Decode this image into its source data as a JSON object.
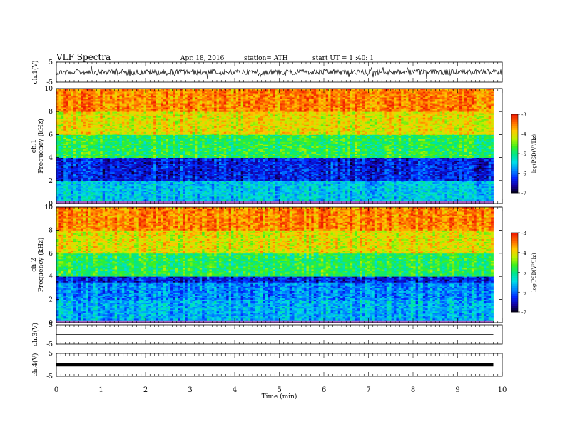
{
  "header": {
    "title": "VLF  Spectra",
    "date": "Apr. 18, 2016",
    "station": "station= ATH",
    "start": "start  UT  =   1  :40: 1"
  },
  "chart_data": [
    {
      "type": "line",
      "name": "ch1-waveform",
      "ylabel": "ch.1(V)",
      "ylim": [
        -5,
        5
      ],
      "yticks": [
        "5",
        "-5"
      ],
      "approx_level": 0,
      "xlim": [
        0,
        10
      ]
    },
    {
      "type": "heatmap",
      "name": "ch1-spectrogram",
      "ylabel": [
        "ch.1",
        "Frequency  (kHz)"
      ],
      "ylim": [
        0,
        10
      ],
      "yticks": [
        "0",
        "2",
        "4",
        "6",
        "8",
        "10"
      ],
      "xlim": [
        0,
        9.8
      ],
      "color_scale": {
        "label": "log(PSD(V²/Hz)",
        "ticks": [
          "-3",
          "-4",
          "-5",
          "-6",
          "-7"
        ],
        "range": [
          -7,
          -3
        ]
      },
      "approx_log_psd_by_band": [
        {
          "freq_khz": [
            0,
            2
          ],
          "value": -5.5
        },
        {
          "freq_khz": [
            2,
            4
          ],
          "value": -6.3
        },
        {
          "freq_khz": [
            4,
            6
          ],
          "value": -4.8
        },
        {
          "freq_khz": [
            6,
            8
          ],
          "value": -4.0
        },
        {
          "freq_khz": [
            8,
            10
          ],
          "value": -3.5
        }
      ]
    },
    {
      "type": "heatmap",
      "name": "ch2-spectrogram",
      "ylabel": [
        "ch.2",
        "Frequency  (kHz)"
      ],
      "ylim": [
        0,
        10
      ],
      "yticks": [
        "0",
        "2",
        "4",
        "6",
        "8",
        "10"
      ],
      "xlim": [
        0,
        9.8
      ],
      "color_scale": {
        "label": "log(PSD(V²/Hz)",
        "ticks": [
          "-3",
          "-4",
          "-5",
          "-6",
          "-7"
        ],
        "range": [
          -7,
          -3
        ]
      },
      "approx_log_psd_by_band": [
        {
          "freq_khz": [
            0,
            2
          ],
          "value": -5.6
        },
        {
          "freq_khz": [
            2,
            3.5
          ],
          "value": -5.8
        },
        {
          "freq_khz": [
            3.5,
            4
          ],
          "value": -6.3
        },
        {
          "freq_khz": [
            4,
            6
          ],
          "value": -4.8
        },
        {
          "freq_khz": [
            6,
            8
          ],
          "value": -4.0
        },
        {
          "freq_khz": [
            8,
            10
          ],
          "value": -3.5
        }
      ]
    },
    {
      "type": "line",
      "name": "ch3-waveform",
      "ylabel": "ch.3(V)",
      "ylim": [
        -5,
        5
      ],
      "yticks": [
        "5",
        "-5"
      ],
      "approx_level": 0,
      "xlim": [
        0,
        9.8
      ]
    },
    {
      "type": "line",
      "name": "ch4-waveform",
      "ylabel": "ch.4(V)",
      "ylim": [
        -5,
        5
      ],
      "yticks": [
        "5",
        "-5"
      ],
      "approx_level": 0,
      "xlim": [
        0,
        9.8
      ]
    }
  ],
  "x_axis": {
    "label": "Time  (min)",
    "ticks": [
      "0",
      "1",
      "2",
      "3",
      "4",
      "5",
      "6",
      "7",
      "8",
      "9",
      "10"
    ],
    "range": [
      0,
      10
    ]
  },
  "colors": {
    "scale": [
      "#000000",
      "#1a00c8",
      "#0050ff",
      "#00c8ff",
      "#00e8a0",
      "#40ff00",
      "#d8ff00",
      "#ffb000",
      "#ff3000",
      "#ffffff"
    ]
  }
}
